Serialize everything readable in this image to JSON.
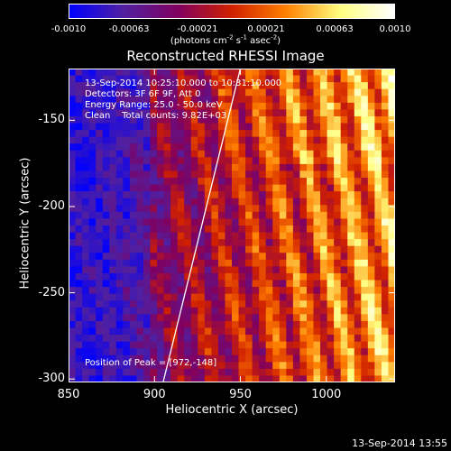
{
  "chart_data": {
    "type": "heatmap",
    "title": "Reconstructed RHESSI Image",
    "xlabel": "Heliocentric X (arcsec)",
    "ylabel": "Heliocentric Y (arcsec)",
    "xlim": [
      850,
      1040
    ],
    "ylim": [
      -302,
      -120
    ],
    "x_ticks": [
      "850",
      "900",
      "950",
      "1000"
    ],
    "x_tick_values": [
      850,
      900,
      950,
      1000
    ],
    "y_ticks": [
      "-150",
      "-200",
      "-250",
      "-300"
    ],
    "y_tick_values": [
      -150,
      -200,
      -250,
      -300
    ],
    "colorbar": {
      "range": [
        -0.001,
        0.001
      ],
      "tick_labels": [
        "-0.0010",
        "-0.00063",
        "-0.00021",
        "0.00021",
        "0.00063",
        "0.0010"
      ],
      "tick_values": [
        -0.001,
        -0.00063,
        -0.00021,
        0.00021,
        0.00063,
        0.001
      ],
      "units_parts": [
        "(photons cm",
        "-2",
        " s",
        "-1",
        " asec",
        "-2",
        ")"
      ],
      "colors": [
        "#0000ff",
        "#5020a0",
        "#800060",
        "#d02000",
        "#ff8000",
        "#ffff80",
        "#ffffff"
      ]
    },
    "annotations": [
      "13-Sep-2014 10:25:10.000 to 10:31:10.000",
      "Detectors: 3F 6F 9F, Att 0",
      "Energy Range: 25.0 - 50.0 keV",
      "Clean    Total counts: 9.82E+03"
    ],
    "peak_label": "Position of Peak = [972,-148]",
    "limb_line": {
      "x": [
        905,
        950
      ],
      "y": [
        -302,
        -120
      ]
    }
  },
  "footer": {
    "timestamp": "13-Sep-2014 13:55"
  }
}
